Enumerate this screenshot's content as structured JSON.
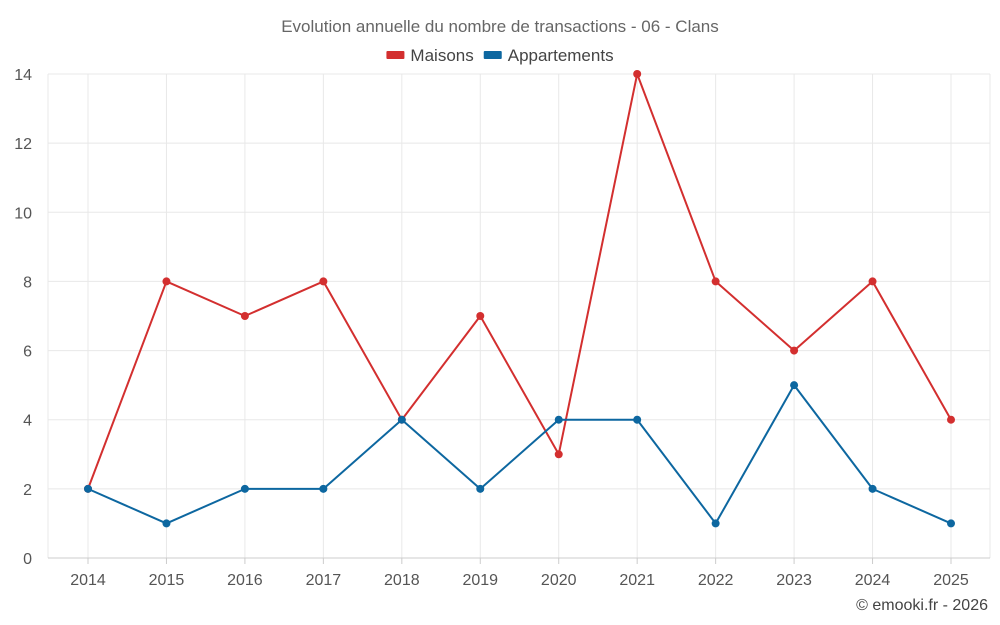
{
  "chart_data": {
    "type": "line",
    "title": "Evolution annuelle du nombre de transactions - 06 - Clans",
    "xlabel": "",
    "ylabel": "",
    "categories": [
      "2014",
      "2015",
      "2016",
      "2017",
      "2018",
      "2019",
      "2020",
      "2021",
      "2022",
      "2023",
      "2024",
      "2025"
    ],
    "ylim": [
      0,
      14
    ],
    "yticks": [
      0,
      2,
      4,
      6,
      8,
      10,
      12,
      14
    ],
    "grid": true,
    "legend_position": "top-center",
    "series": [
      {
        "name": "Maisons",
        "color": "#d32f2f",
        "values": [
          2,
          8,
          7,
          8,
          4,
          7,
          3,
          14,
          8,
          6,
          8,
          4
        ]
      },
      {
        "name": "Appartements",
        "color": "#0d67a0",
        "values": [
          2,
          1,
          2,
          2,
          4,
          2,
          4,
          4,
          1,
          5,
          2,
          1
        ]
      }
    ]
  },
  "credit": "© emooki.fr - 2026"
}
